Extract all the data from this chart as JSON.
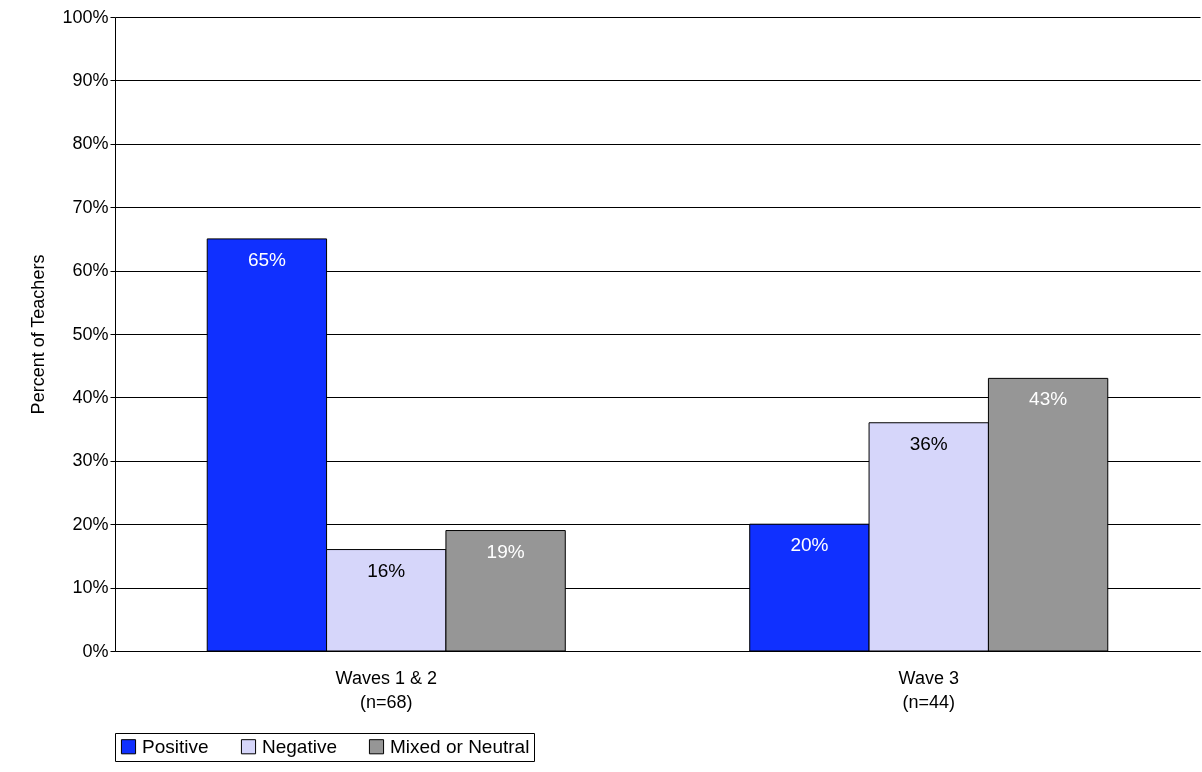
{
  "chart_data": {
    "type": "bar",
    "ylabel": "Percent of Teachers",
    "categories": [
      "Waves 1 & 2\n(n=68)",
      "Wave 3\n(n=44)"
    ],
    "series": [
      {
        "name": "Positive",
        "color": "#1030ff",
        "values": [
          65,
          20
        ],
        "value_labels": [
          "65%",
          "20%"
        ]
      },
      {
        "name": "Negative",
        "color": "#d6d6fa",
        "values": [
          16,
          36
        ],
        "value_labels": [
          "16%",
          "36%"
        ]
      },
      {
        "name": "Mixed or Neutral",
        "color": "#969696",
        "values": [
          19,
          43
        ],
        "value_labels": [
          "19%",
          "43%"
        ]
      }
    ],
    "ylim": [
      0,
      100
    ],
    "yticks": [
      {
        "value": 0,
        "label": "0%"
      },
      {
        "value": 10,
        "label": "10%"
      },
      {
        "value": 20,
        "label": "20%"
      },
      {
        "value": 30,
        "label": "30%"
      },
      {
        "value": 40,
        "label": "40%"
      },
      {
        "value": 50,
        "label": "50%"
      },
      {
        "value": 60,
        "label": "60%"
      },
      {
        "value": 70,
        "label": "70%"
      },
      {
        "value": 80,
        "label": "80%"
      },
      {
        "value": 90,
        "label": "90%"
      },
      {
        "value": 100,
        "label": "100%"
      }
    ],
    "grid": "y",
    "legend": "bottom"
  }
}
